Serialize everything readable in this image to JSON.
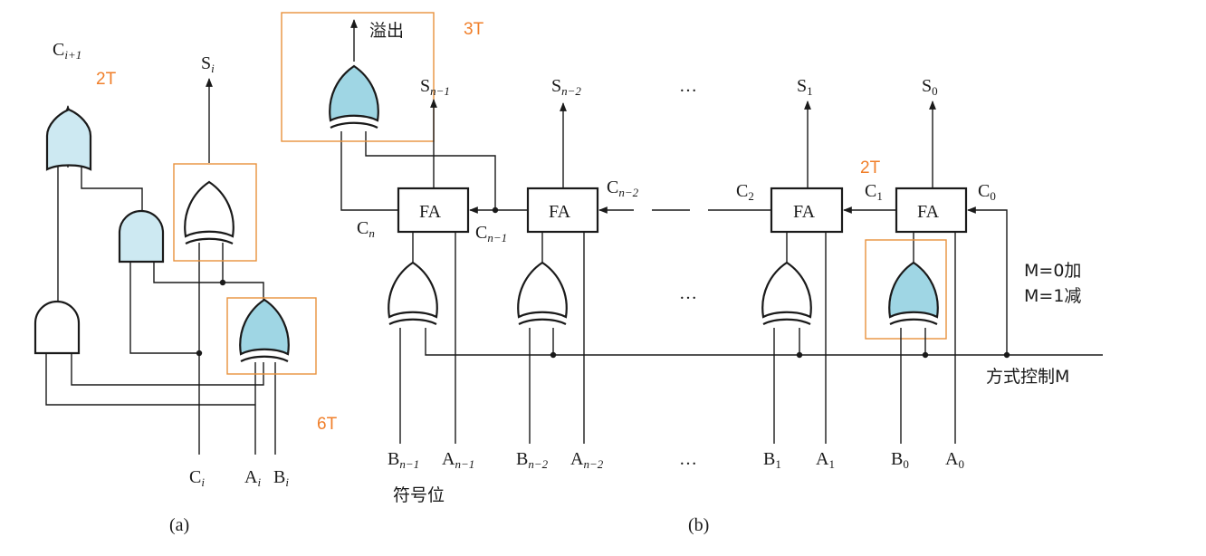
{
  "labels": {
    "a_cout": "C",
    "a_cout_sub": "i+1",
    "a_sum": "S",
    "a_sum_sub": "i",
    "a_cin": "C",
    "a_cin_sub": "i",
    "a_ain": "A",
    "a_ain_sub": "i",
    "a_bin": "B",
    "a_bin_sub": "i",
    "delay_2t_a": "2T",
    "delay_6t": "6T",
    "caption_a": "(a)",
    "overflow": "溢出",
    "delay_3t": "3T",
    "s_n1": "S",
    "s_n1_sub": "n−1",
    "s_n2": "S",
    "s_n2_sub": "n−2",
    "s_1": "S",
    "s_1_sub": "1",
    "s_0": "S",
    "s_0_sub": "0",
    "ellipsis_top": "…",
    "ellipsis_mid": "…",
    "ellipsis_bot": "…",
    "fa": "FA",
    "c_n": "C",
    "c_n_sub": "n",
    "c_n1": "C",
    "c_n1_sub": "n−1",
    "c_n2": "C",
    "c_n2_sub": "n−2",
    "c_2": "C",
    "c_2_sub": "2",
    "c_1": "C",
    "c_1_sub": "1",
    "c_0": "C",
    "c_0_sub": "0",
    "delay_2t_b": "2T",
    "mode_add": "M=0加",
    "mode_sub": "M=1减",
    "mode_control": "方式控制M",
    "b_n1": "B",
    "b_n1_sub": "n−1",
    "a_n1": "A",
    "a_n1_sub": "n−1",
    "b_n2": "B",
    "b_n2_sub": "n−2",
    "a_n2": "A",
    "a_n2_sub": "n−2",
    "b_1": "B",
    "b_1_sub": "1",
    "a_1": "A",
    "a_1_sub": "1",
    "b_0": "B",
    "b_0_sub": "0",
    "a_0": "A",
    "a_0_sub": "0",
    "sign_bit": "符号位",
    "caption_b": "(b)"
  },
  "colors": {
    "gate_fill_light": "#cde9f2",
    "gate_fill_dark": "#9fd6e4",
    "gate_fill_white": "#ffffff",
    "highlight": "#e8913c",
    "annotation": "#f07f2a"
  }
}
